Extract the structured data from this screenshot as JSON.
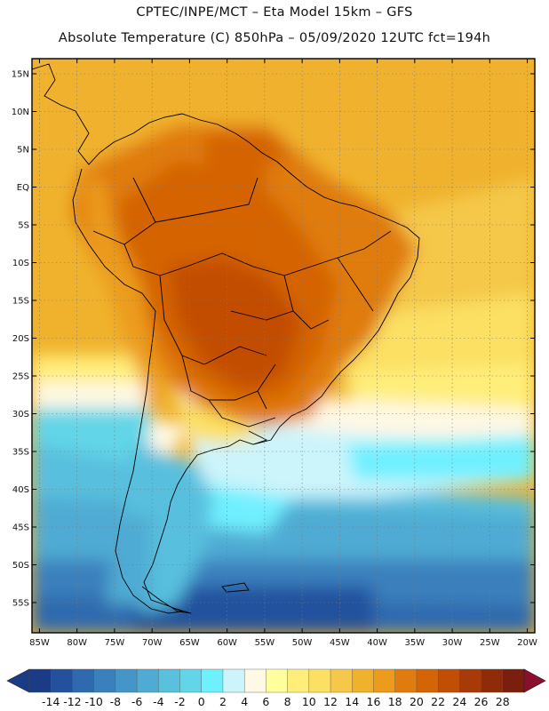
{
  "title": {
    "line1": "CPTEC/INPE/MCT –  Eta Model 15km – GFS",
    "line2": "Absolute Temperature (C) 850hPa – 05/09/2020 12UTC fct=194h"
  },
  "map": {
    "lon_range": [
      -86,
      -19
    ],
    "lat_range": [
      -59,
      17
    ],
    "lat_labels": [
      "15N",
      "10N",
      "5N",
      "EQ",
      "5S",
      "10S",
      "15S",
      "20S",
      "25S",
      "30S",
      "35S",
      "40S",
      "45S",
      "50S",
      "55S"
    ],
    "lat_values": [
      15,
      10,
      5,
      0,
      -5,
      -10,
      -15,
      -20,
      -25,
      -30,
      -35,
      -40,
      -45,
      -50,
      -55
    ],
    "lon_labels": [
      "85W",
      "80W",
      "75W",
      "70W",
      "65W",
      "60W",
      "55W",
      "50W",
      "45W",
      "40W",
      "35W",
      "30W",
      "25W",
      "20W"
    ],
    "lon_values": [
      -85,
      -80,
      -75,
      -70,
      -65,
      -60,
      -55,
      -50,
      -45,
      -40,
      -35,
      -30,
      -25,
      -20
    ],
    "grid": true
  },
  "colorbar": {
    "levels": [
      "-14",
      "-12",
      "-10",
      "-8",
      "-6",
      "-4",
      "-2",
      "0",
      "2",
      "4",
      "6",
      "8",
      "10",
      "12",
      "14",
      "16",
      "18",
      "20",
      "22",
      "24",
      "26",
      "28"
    ],
    "colors": [
      "#1a3b86",
      "#24519d",
      "#2f6aae",
      "#3a80bd",
      "#4496c8",
      "#4fabd3",
      "#59c0de",
      "#62d5e8",
      "#6ff0ff",
      "#ccf4fb",
      "#fff8e4",
      "#ffff9e",
      "#ffee7a",
      "#fbe063",
      "#f5c84a",
      "#f0b22d",
      "#ec9b1c",
      "#e07c0e",
      "#d46406",
      "#c24e05",
      "#a83a08",
      "#8e2c0a",
      "#7a1e0e"
    ],
    "under_color": "#1a3b86",
    "over_color": "#8a0f2a"
  }
}
